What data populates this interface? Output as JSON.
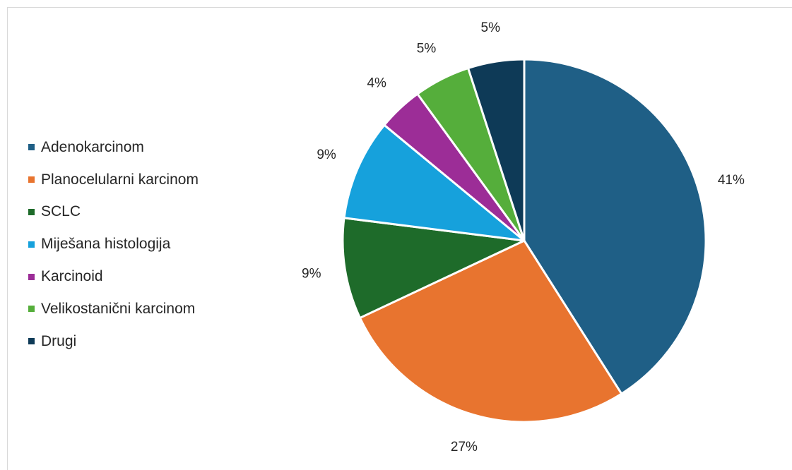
{
  "chart_data": {
    "type": "pie",
    "categories": [
      "Adenokarcinom",
      "Planocelularni karcinom",
      "SCLC",
      "Miješana histologija",
      "Karcinoid",
      "Velikostanični karcinom",
      "Drugi"
    ],
    "values": [
      41,
      27,
      9,
      9,
      4,
      5,
      5
    ],
    "data_labels": [
      "41%",
      "27%",
      "9%",
      "9%",
      "4%",
      "5%",
      "5%"
    ],
    "colors": [
      "#1f5f86",
      "#e8742f",
      "#1e6b2a",
      "#16a1dc",
      "#9c2d97",
      "#55ae3b",
      "#0e3a57"
    ],
    "legend_position": "left",
    "slice_border_color": "#ffffff"
  }
}
